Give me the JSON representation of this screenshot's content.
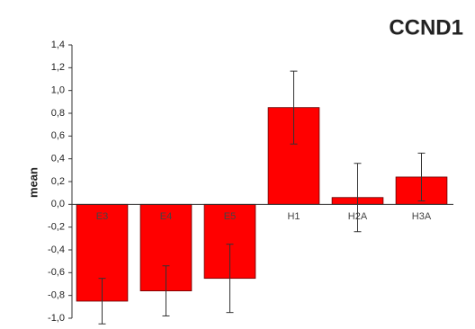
{
  "chart_data": {
    "type": "bar",
    "title": "CCND1",
    "y_label": "mean",
    "categories": [
      "E3",
      "E4",
      "E5",
      "H1",
      "H2A",
      "H3A"
    ],
    "values": [
      -0.85,
      -0.76,
      -0.65,
      0.85,
      0.06,
      0.24
    ],
    "errors": [
      0.2,
      0.22,
      0.3,
      0.32,
      0.3,
      0.21
    ],
    "color": "#ff0000",
    "ylim": [
      -1.0,
      1.4
    ],
    "yticks": [
      {
        "value": -1.0,
        "label": "-1,0"
      },
      {
        "value": -0.8,
        "label": "-0,8"
      },
      {
        "value": -0.6,
        "label": "-0,6"
      },
      {
        "value": -0.4,
        "label": "-0,4"
      },
      {
        "value": -0.2,
        "label": "-0,2"
      },
      {
        "value": 0,
        "label": "0,0"
      },
      {
        "value": 0.2,
        "label": "0,2"
      },
      {
        "value": 0.4,
        "label": "0,4"
      },
      {
        "value": 0.6,
        "label": "0,6"
      },
      {
        "value": 0.8,
        "label": "0,8"
      },
      {
        "value": 1.0,
        "label": "1,0"
      },
      {
        "value": 1.2,
        "label": "1,2"
      },
      {
        "value": 1.4,
        "label": "1,4"
      }
    ]
  }
}
